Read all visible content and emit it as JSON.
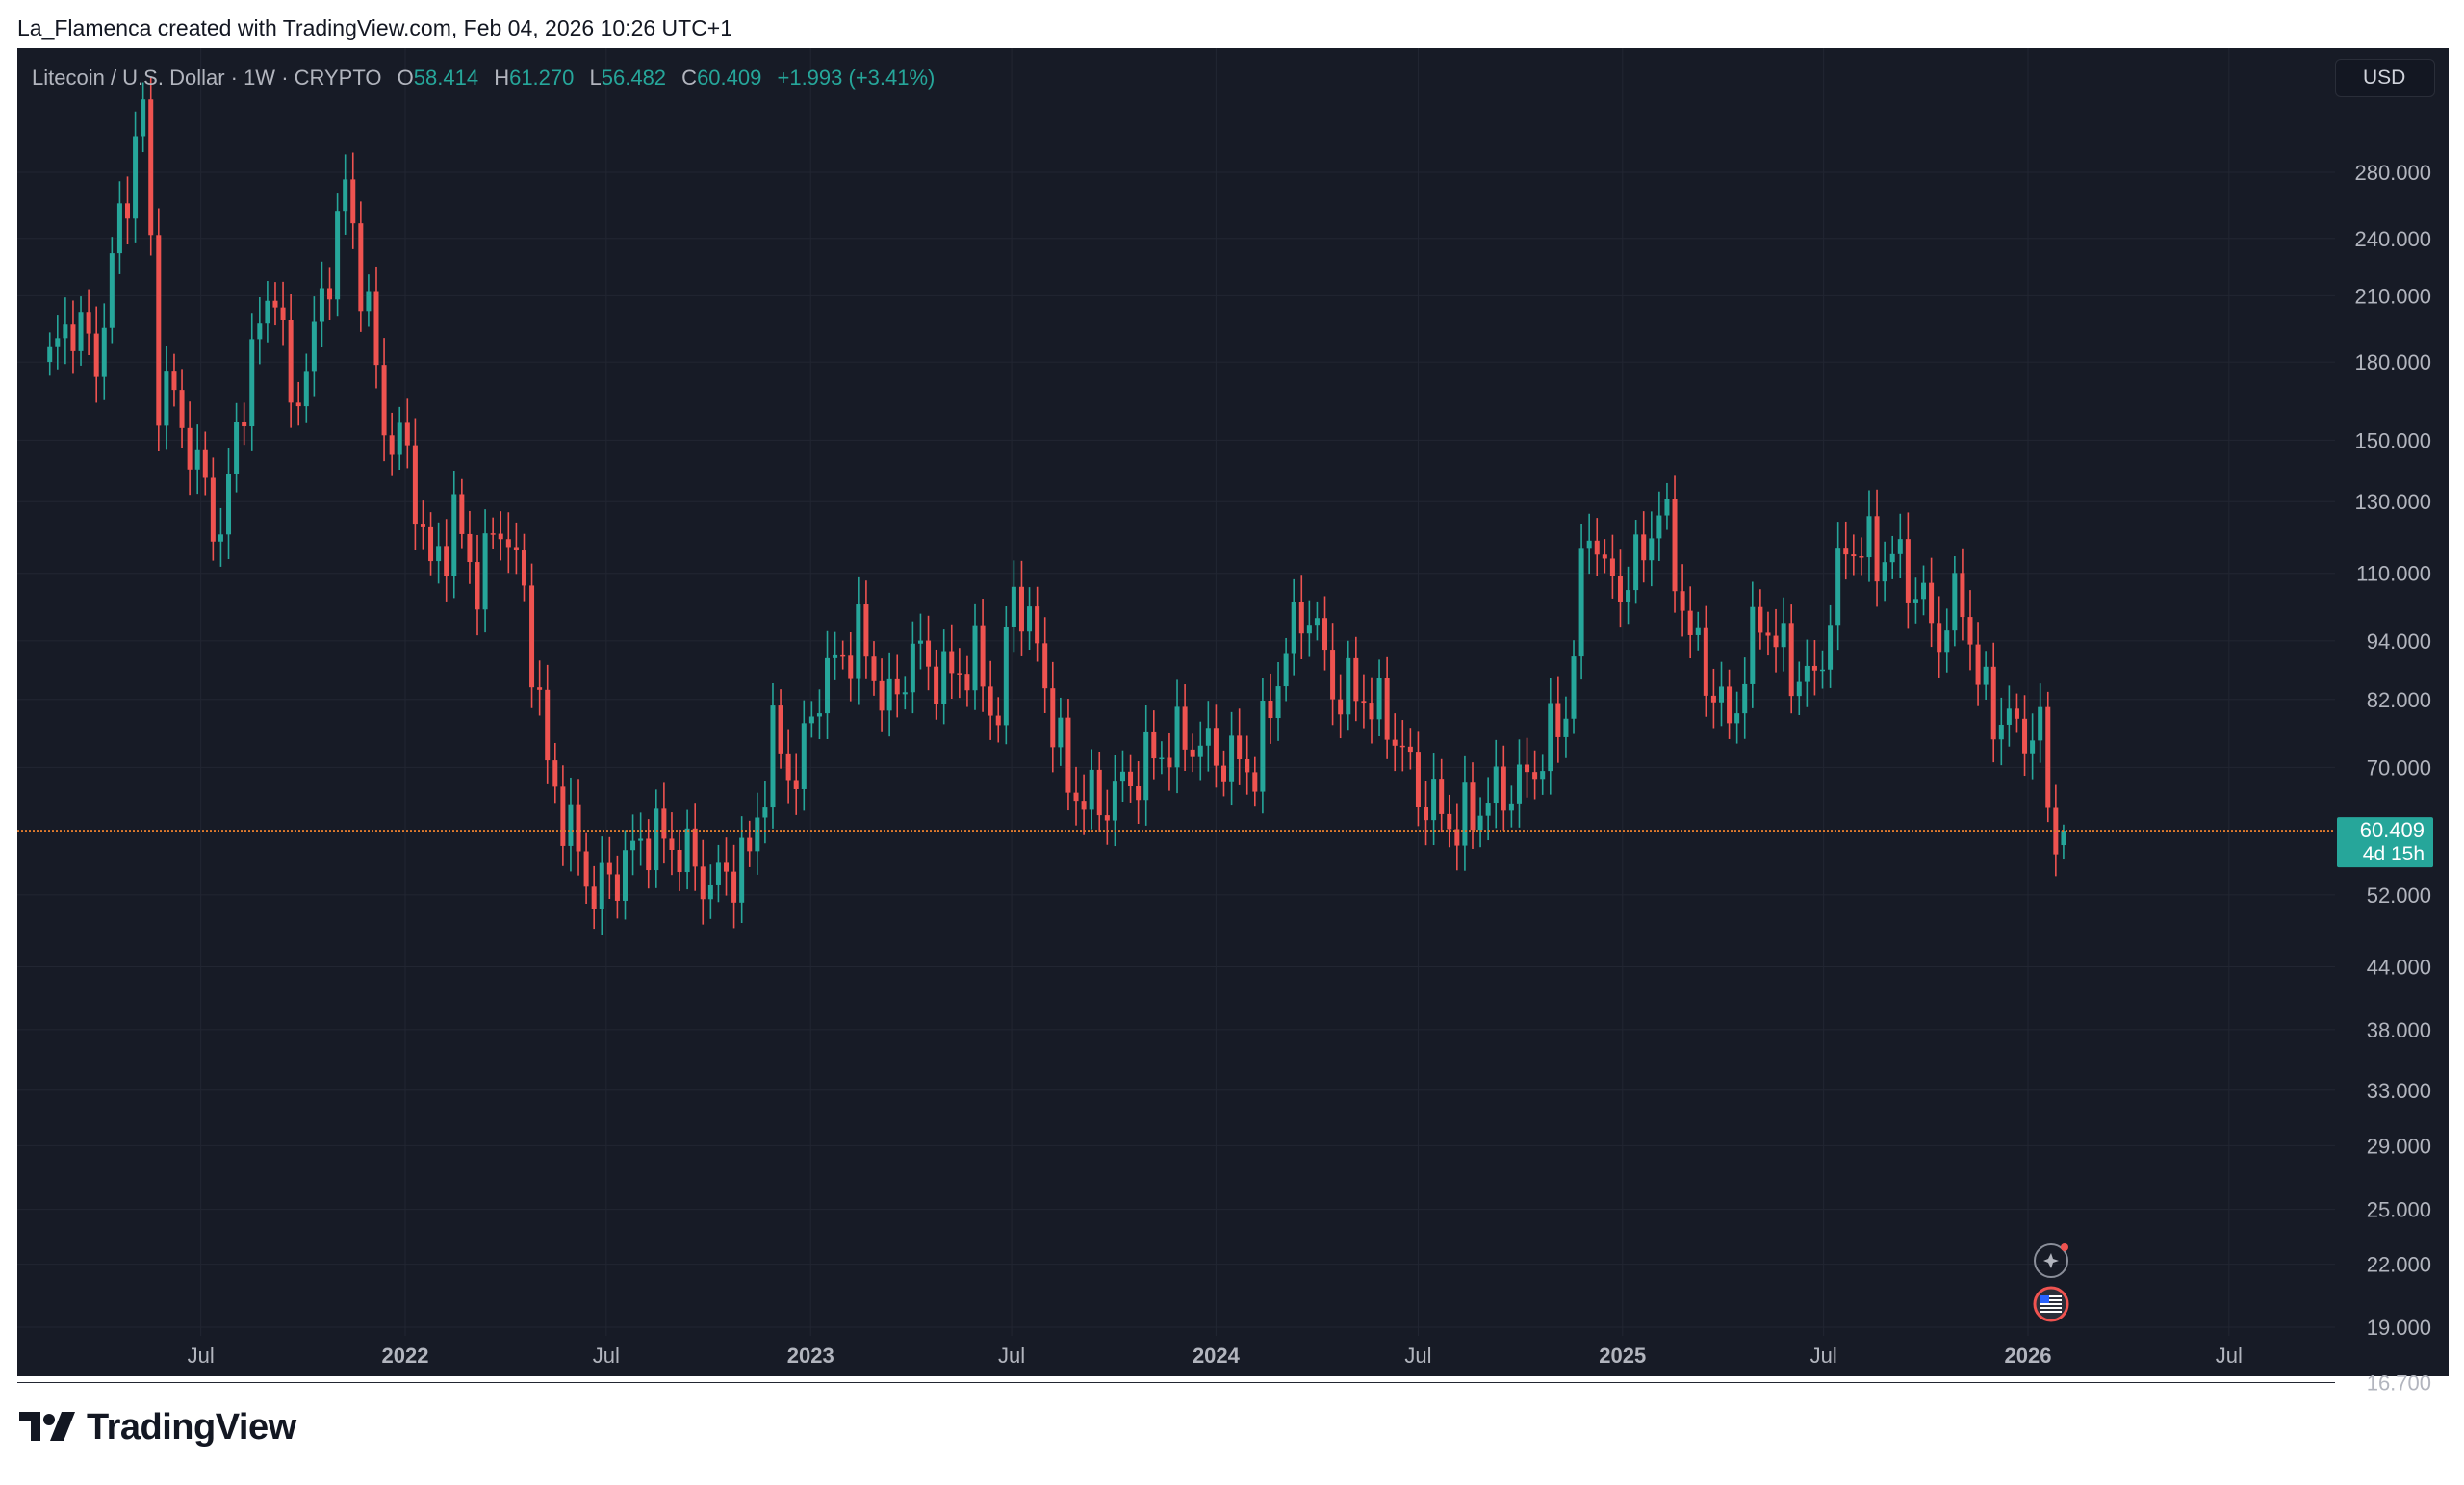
{
  "header": {
    "text": "La_Flamenca created with TradingView.com, Feb 04, 2026 10:26 UTC+1"
  },
  "legend": {
    "symbol": "Litecoin / U.S. Dollar · 1W · CRYPTO",
    "open_label": "O",
    "open": "58.414",
    "high_label": "H",
    "high": "61.270",
    "low_label": "L",
    "low": "56.482",
    "close_label": "C",
    "close": "60.409",
    "change": "+1.993 (+3.41%)"
  },
  "currency_button": "USD",
  "price_tag": {
    "price": "60.409",
    "countdown": "4d 15h"
  },
  "brand": {
    "name": "TradingView"
  },
  "icons": [
    "sparkle-flash-icon",
    "us-flag-icon"
  ],
  "colors": {
    "background": "#171b26",
    "up": "#26a69a",
    "down": "#ef5350",
    "price_line": "#e07a2e",
    "grid": "#222632",
    "axis_text": "#b2b5be"
  },
  "chart_data": {
    "type": "candlestick",
    "title": "Litecoin / U.S. Dollar · 1W · CRYPTO",
    "y_scale": "log",
    "ylim": [
      16.7,
      330
    ],
    "y_ticks": [
      "280.000",
      "240.000",
      "210.000",
      "180.000",
      "150.000",
      "130.000",
      "110.000",
      "94.000",
      "82.000",
      "70.000",
      "52.000",
      "44.000",
      "38.000",
      "33.000",
      "29.000",
      "25.000",
      "22.000",
      "19.000",
      "16.700"
    ],
    "x_ticks": [
      {
        "label": "Jul",
        "date": "2021-07-01",
        "bold": false
      },
      {
        "label": "2022",
        "date": "2022-01-01",
        "bold": true
      },
      {
        "label": "Jul",
        "date": "2022-07-01",
        "bold": false
      },
      {
        "label": "2023",
        "date": "2023-01-01",
        "bold": true
      },
      {
        "label": "Jul",
        "date": "2023-07-01",
        "bold": false
      },
      {
        "label": "2024",
        "date": "2024-01-01",
        "bold": true
      },
      {
        "label": "Jul",
        "date": "2024-07-01",
        "bold": false
      },
      {
        "label": "2025",
        "date": "2025-01-01",
        "bold": true
      },
      {
        "label": "Jul",
        "date": "2025-07-01",
        "bold": false
      },
      {
        "label": "2026",
        "date": "2026-01-01",
        "bold": true
      },
      {
        "label": "Jul",
        "date": "2026-07-01",
        "bold": false
      }
    ],
    "current_price": 60.409,
    "anchors": [
      [
        "2021-02-15",
        180
      ],
      [
        "2021-03-08",
        200
      ],
      [
        "2021-03-29",
        180
      ],
      [
        "2021-04-19",
        250
      ],
      [
        "2021-05-10",
        325
      ],
      [
        "2021-05-24",
        170
      ],
      [
        "2021-06-07",
        165
      ],
      [
        "2021-06-28",
        140
      ],
      [
        "2021-07-19",
        120
      ],
      [
        "2021-08-09",
        170
      ],
      [
        "2021-09-06",
        220
      ],
      [
        "2021-09-20",
        160
      ],
      [
        "2021-10-11",
        190
      ],
      [
        "2021-11-08",
        270
      ],
      [
        "2021-11-29",
        200
      ],
      [
        "2021-12-13",
        155
      ],
      [
        "2022-01-03",
        145
      ],
      [
        "2022-01-24",
        110
      ],
      [
        "2022-02-14",
        125
      ],
      [
        "2022-03-07",
        108
      ],
      [
        "2022-03-28",
        125
      ],
      [
        "2022-04-18",
        105
      ],
      [
        "2022-05-09",
        70
      ],
      [
        "2022-05-30",
        60
      ],
      [
        "2022-06-20",
        52
      ],
      [
        "2022-07-11",
        55
      ],
      [
        "2022-08-08",
        60
      ],
      [
        "2022-09-05",
        58
      ],
      [
        "2022-10-03",
        53
      ],
      [
        "2022-11-07",
        57
      ],
      [
        "2022-11-28",
        75
      ],
      [
        "2022-12-19",
        68
      ],
      [
        "2023-01-09",
        85
      ],
      [
        "2023-02-13",
        95
      ],
      [
        "2023-03-13",
        80
      ],
      [
        "2023-04-03",
        92
      ],
      [
        "2023-05-01",
        86
      ],
      [
        "2023-05-29",
        90
      ],
      [
        "2023-06-19",
        78
      ],
      [
        "2023-07-03",
        108
      ],
      [
        "2023-07-24",
        92
      ],
      [
        "2023-08-21",
        67
      ],
      [
        "2023-09-18",
        64
      ],
      [
        "2023-10-16",
        68
      ],
      [
        "2023-11-06",
        72
      ],
      [
        "2023-12-04",
        75
      ],
      [
        "2024-01-01",
        72
      ],
      [
        "2024-02-05",
        70
      ],
      [
        "2024-03-04",
        93
      ],
      [
        "2024-03-25",
        102
      ],
      [
        "2024-04-15",
        84
      ],
      [
        "2024-05-13",
        83
      ],
      [
        "2024-06-10",
        76
      ],
      [
        "2024-07-01",
        66
      ],
      [
        "2024-08-05",
        61
      ],
      [
        "2024-09-02",
        65
      ],
      [
        "2024-10-07",
        68
      ],
      [
        "2024-11-11",
        80
      ],
      [
        "2024-12-02",
        125
      ],
      [
        "2024-12-23",
        105
      ],
      [
        "2025-01-20",
        115
      ],
      [
        "2025-02-03",
        130
      ],
      [
        "2025-03-03",
        95
      ],
      [
        "2025-04-07",
        77
      ],
      [
        "2025-05-05",
        100
      ],
      [
        "2025-06-02",
        88
      ],
      [
        "2025-06-23",
        85
      ],
      [
        "2025-07-21",
        118
      ],
      [
        "2025-08-18",
        115
      ],
      [
        "2025-09-08",
        113
      ],
      [
        "2025-10-13",
        95
      ],
      [
        "2025-11-03",
        105
      ],
      [
        "2025-11-17",
        85
      ],
      [
        "2025-12-08",
        78
      ],
      [
        "2026-01-12",
        75
      ],
      [
        "2026-01-26",
        58.4
      ],
      [
        "2026-02-02",
        60.4
      ]
    ]
  }
}
